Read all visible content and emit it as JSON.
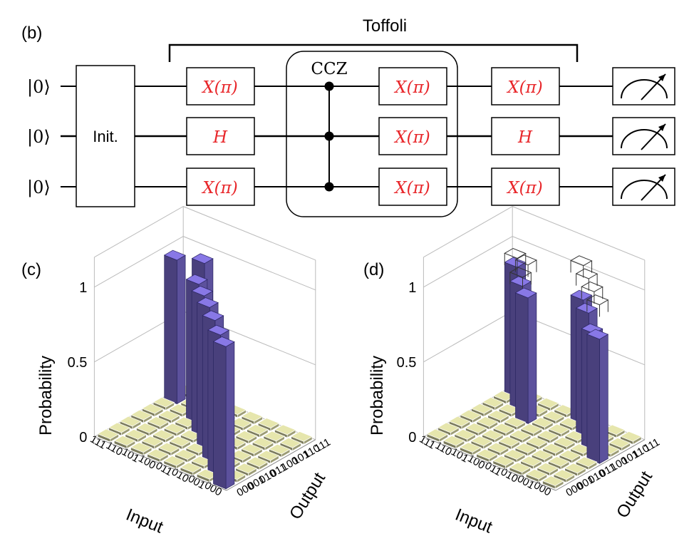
{
  "panel_b": {
    "label": "(b)",
    "toffoli_label": "Toffoli",
    "ccz_label": "CCZ",
    "init_label": "Init.",
    "qubit_labels": [
      "|0⟩",
      "|0⟩",
      "|0⟩"
    ],
    "gates_col1": [
      "X(π)",
      "H",
      "X(π)"
    ],
    "gates_col2": [
      "X(π)",
      "X(π)",
      "X(π)"
    ],
    "gates_col3": [
      "X(π)",
      "H",
      "X(π)"
    ],
    "gate_color": "#e8262a"
  },
  "chart_data": [
    {
      "type": "bar3d",
      "panel_label": "(c)",
      "zlabel": "Probability",
      "xlabel": "Input",
      "ylabel": "Output",
      "input_ticks": [
        "111",
        "110",
        "101",
        "100",
        "011",
        "010",
        "001",
        "000"
      ],
      "output_ticks": [
        "000",
        "001",
        "010",
        "011",
        "100",
        "101",
        "110",
        "111"
      ],
      "z_ticks": [
        "0",
        "0.5",
        "1"
      ],
      "zlim": [
        0,
        1
      ],
      "bar_color": "#7668c8",
      "floor_color": "#c8c896",
      "bars": [
        {
          "input": "111",
          "output": "110",
          "value": 0.96
        },
        {
          "input": "110",
          "output": "111",
          "value": 0.94
        },
        {
          "input": "101",
          "output": "101",
          "value": 0.93
        },
        {
          "input": "100",
          "output": "100",
          "value": 0.94
        },
        {
          "input": "011",
          "output": "011",
          "value": 0.95
        },
        {
          "input": "010",
          "output": "010",
          "value": 0.95
        },
        {
          "input": "001",
          "output": "001",
          "value": 0.94
        },
        {
          "input": "000",
          "output": "000",
          "value": 0.95
        }
      ]
    },
    {
      "type": "bar3d",
      "panel_label": "(d)",
      "zlabel": "Probability",
      "xlabel": "Input",
      "ylabel": "Output",
      "input_ticks": [
        "111",
        "110",
        "101",
        "100",
        "011",
        "010",
        "001",
        "000"
      ],
      "output_ticks": [
        "000",
        "001",
        "010",
        "011",
        "100",
        "101",
        "110",
        "111"
      ],
      "z_ticks": [
        "0",
        "0.5",
        "1"
      ],
      "zlim": [
        0,
        1
      ],
      "bar_color": "#7668c8",
      "floor_color": "#c8c896",
      "bars": [
        {
          "input": "111",
          "output": "111",
          "value": 0.87,
          "ideal": 0.5
        },
        {
          "input": "111",
          "output": "110",
          "value": 0.0,
          "ideal": 0.0
        },
        {
          "input": "110",
          "output": "110",
          "value": 0.83,
          "ideal": 0.5
        },
        {
          "input": "101",
          "output": "101",
          "value": 0.84,
          "ideal": 1.0
        },
        {
          "input": "011",
          "output": "111",
          "value": 0.83,
          "ideal": 1.0
        },
        {
          "input": "010",
          "output": "110",
          "value": 0.83,
          "ideal": 1.0
        },
        {
          "input": "001",
          "output": "101",
          "value": 0.78,
          "ideal": 1.0
        },
        {
          "input": "000",
          "output": "100",
          "value": 0.83,
          "ideal": 1.0
        }
      ]
    }
  ]
}
